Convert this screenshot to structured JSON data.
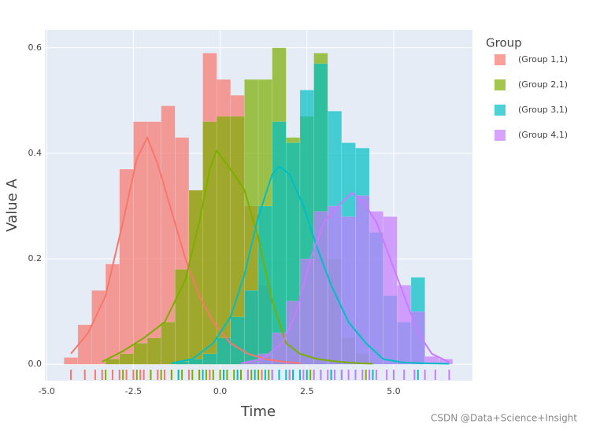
{
  "chart_data": {
    "type": "distplot",
    "x_label": "Time",
    "y_label": "Value A",
    "legend_title": "Group",
    "legend_position": "right",
    "watermark": "CSDN @Data+Science+Insight",
    "grid": true,
    "xlim": [
      -5.05,
      7.27
    ],
    "ylim": [
      -0.031,
      0.634
    ],
    "xticks": [
      {
        "value": -5,
        "label": "-5.0"
      },
      {
        "value": -2.5,
        "label": "-2.5"
      },
      {
        "value": 0,
        "label": "0.0"
      },
      {
        "value": 2.5,
        "label": "2.5"
      },
      {
        "value": 5,
        "label": "5.0"
      }
    ],
    "yticks": [
      {
        "value": 0,
        "label": "0.0"
      },
      0.2,
      0.4,
      0.6
    ],
    "series": [
      {
        "name": "(Group 1,1)",
        "color": "#F8766D",
        "bins": [
          -4.5,
          -4.1,
          -3.7,
          -3.3,
          -2.9,
          -2.5,
          -2.1,
          -1.7,
          -1.3,
          -0.9,
          -0.5,
          -0.1,
          0.3,
          0.7,
          1.1,
          1.5,
          1.9,
          2.3
        ],
        "values": [
          0.013,
          0.075,
          0.14,
          0.19,
          0.37,
          0.46,
          0.46,
          0.49,
          0.43,
          0.33,
          0.59,
          0.54,
          0.51,
          0.3,
          0.15,
          0.06,
          0.02
        ],
        "curve_x": [
          -4.3,
          -3.8,
          -3.3,
          -2.8,
          -2.4,
          -2.1,
          -1.8,
          -1.4,
          -1.0,
          -0.6,
          -0.2,
          0.3,
          0.8,
          1.3,
          1.8,
          2.3
        ],
        "curve_y": [
          0.02,
          0.06,
          0.13,
          0.27,
          0.39,
          0.43,
          0.38,
          0.29,
          0.2,
          0.13,
          0.08,
          0.04,
          0.02,
          0.01,
          0.005,
          0.002
        ],
        "rug": [
          -4.3,
          -3.9,
          -3.6,
          -3.4,
          -3.1,
          -2.9,
          -2.7,
          -2.5,
          -2.3,
          -2.2,
          -2.0,
          -1.8,
          -1.6,
          -1.4,
          -1.2,
          -0.9,
          -0.6,
          -0.3,
          0.1,
          0.6,
          1.2,
          2.1
        ]
      },
      {
        "name": "(Group 2,1)",
        "color": "#7CAE00",
        "bins": [
          -3.3,
          -2.9,
          -2.5,
          -2.1,
          -1.7,
          -1.3,
          -0.9,
          -0.5,
          -0.1,
          0.3,
          0.7,
          1.1,
          1.5,
          1.9,
          2.3,
          2.7,
          3.1,
          3.5,
          3.9,
          4.3
        ],
        "values": [
          0.01,
          0.02,
          0.04,
          0.05,
          0.08,
          0.18,
          0.33,
          0.46,
          0.47,
          0.47,
          0.54,
          0.54,
          0.6,
          0.43,
          0.47,
          0.59,
          0.2,
          0.05,
          0.02
        ],
        "curve_x": [
          -3.4,
          -2.8,
          -2.2,
          -1.6,
          -1.0,
          -0.6,
          -0.3,
          -0.1,
          0.3,
          0.7,
          1.1,
          1.5,
          1.9,
          2.3,
          2.8,
          3.4,
          4.0,
          4.4
        ],
        "curve_y": [
          0.005,
          0.025,
          0.05,
          0.08,
          0.16,
          0.27,
          0.37,
          0.405,
          0.37,
          0.33,
          0.24,
          0.12,
          0.04,
          0.02,
          0.01,
          0.005,
          0.002,
          0.001
        ],
        "rug": [
          -3.3,
          -2.8,
          -2.4,
          -2.0,
          -1.7,
          -1.4,
          -1.1,
          -0.8,
          -0.6,
          -0.4,
          -0.2,
          0.0,
          0.2,
          0.4,
          0.6,
          0.9,
          1.1,
          1.4,
          1.7,
          2.0,
          2.6,
          3.2,
          4.2
        ]
      },
      {
        "name": "(Group 3,1)",
        "color": "#00BFC4",
        "bins": [
          -1.3,
          -0.9,
          -0.5,
          -0.1,
          0.3,
          0.7,
          1.1,
          1.5,
          1.9,
          2.3,
          2.7,
          3.1,
          3.5,
          3.9,
          4.3,
          4.7,
          5.1,
          5.5,
          5.9
        ],
        "values": [
          0.005,
          0.01,
          0.02,
          0.05,
          0.09,
          0.14,
          0.3,
          0.46,
          0.42,
          0.52,
          0.57,
          0.48,
          0.42,
          0.41,
          0.25,
          0.13,
          0.08,
          0.165
        ],
        "curve_x": [
          -1.4,
          -0.8,
          -0.2,
          0.3,
          0.7,
          1.1,
          1.5,
          1.7,
          2.0,
          2.4,
          2.8,
          3.2,
          3.7,
          4.2,
          4.7,
          5.2,
          5.8,
          6.6
        ],
        "curve_y": [
          0.002,
          0.01,
          0.04,
          0.09,
          0.17,
          0.28,
          0.36,
          0.375,
          0.36,
          0.3,
          0.22,
          0.15,
          0.08,
          0.04,
          0.01,
          0.004,
          0.002,
          0.001
        ],
        "rug": [
          -1.2,
          -0.5,
          0.1,
          0.5,
          0.8,
          1.0,
          1.3,
          1.5,
          1.7,
          1.9,
          2.1,
          2.3,
          2.5,
          2.7,
          2.9,
          3.2,
          3.5,
          3.9,
          4.4,
          5.0,
          5.7
        ]
      },
      {
        "name": "(Group 4,1)",
        "color": "#C77CFF",
        "bins": [
          0.7,
          1.1,
          1.5,
          1.9,
          2.3,
          2.7,
          3.1,
          3.5,
          3.9,
          4.3,
          4.7,
          5.1,
          5.5,
          5.9,
          6.3,
          6.7
        ],
        "values": [
          0.005,
          0.02,
          0.06,
          0.12,
          0.2,
          0.29,
          0.3,
          0.28,
          0.32,
          0.29,
          0.28,
          0.15,
          0.1,
          0.015,
          0.01
        ],
        "curve_x": [
          0.6,
          1.2,
          1.8,
          2.2,
          2.6,
          3.0,
          3.4,
          3.8,
          4.1,
          4.5,
          4.9,
          5.3,
          5.7,
          6.1,
          6.6
        ],
        "curve_y": [
          0.002,
          0.01,
          0.04,
          0.1,
          0.2,
          0.27,
          0.3,
          0.325,
          0.31,
          0.27,
          0.2,
          0.13,
          0.06,
          0.02,
          0.004
        ],
        "rug": [
          0.8,
          1.5,
          2.0,
          2.4,
          2.7,
          2.9,
          3.1,
          3.3,
          3.5,
          3.7,
          3.9,
          4.1,
          4.3,
          4.5,
          4.8,
          5.0,
          5.3,
          5.6,
          5.9,
          6.2,
          6.6
        ]
      }
    ]
  }
}
